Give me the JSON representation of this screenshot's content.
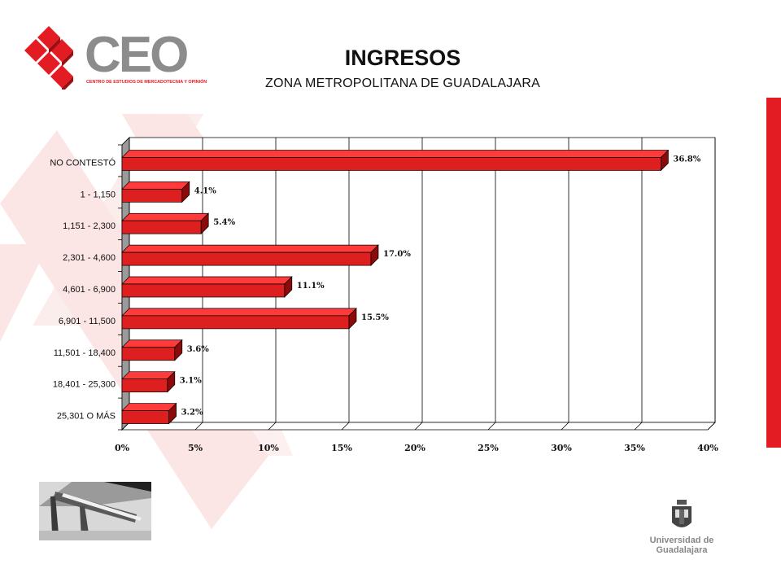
{
  "header": {
    "title": "INGRESOS",
    "subtitle": "ZONA METROPOLITANA DE GUADALAJARA"
  },
  "logo": {
    "text": "CEO",
    "tagline": "CENTRO DE ESTUDIOS DE MERCADOTECNIA Y OPINIÓN",
    "color": "#e31b23",
    "text_color": "#8c8c8c"
  },
  "footer": {
    "university": "Universidad de Guadalajara"
  },
  "colors": {
    "accent": "#e31b23",
    "bar": "#dd1f1f",
    "bar_dark": "#8b0a0a",
    "watermark": "#fbe3e3"
  },
  "chart_data": {
    "type": "bar",
    "orientation": "horizontal",
    "categories": [
      "NO CONTESTÓ",
      "1 - 1,150",
      "1,151 - 2,300",
      "2,301 - 4,600",
      "4,601 - 6,900",
      "6,901 - 11,500",
      "11,501 - 18,400",
      "18,401 - 25,300",
      "25,301 O MÁS"
    ],
    "values": [
      36.8,
      4.1,
      5.4,
      17.0,
      11.1,
      15.5,
      3.6,
      3.1,
      3.2
    ],
    "value_labels": [
      "36.8%",
      "4.1%",
      "5.4%",
      "17.0%",
      "11.1%",
      "15.5%",
      "3.6%",
      "3.1%",
      "3.2%"
    ],
    "xlim": [
      0,
      40
    ],
    "xticks": [
      "0%",
      "5%",
      "10%",
      "15%",
      "20%",
      "25%",
      "30%",
      "35%",
      "40%"
    ],
    "grid": true,
    "legend": "none"
  }
}
